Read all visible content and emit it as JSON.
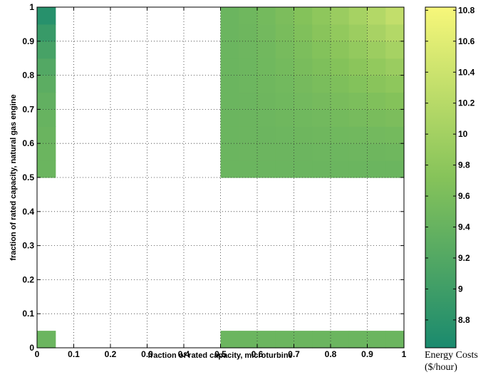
{
  "chart_data": {
    "type": "heatmap",
    "xlabel": "fraction of rated capacity, microturbine",
    "ylabel": "fraction of rated capacity, natural gas engine",
    "xlim": [
      0,
      1
    ],
    "ylim": [
      0,
      1
    ],
    "x_ticks": [
      "0",
      "0.1",
      "0.2",
      "0.3",
      "0.4",
      "0.5",
      "0.6",
      "0.7",
      "0.8",
      "0.9",
      "1"
    ],
    "y_ticks": [
      "0",
      "0.1",
      "0.2",
      "0.3",
      "0.4",
      "0.5",
      "0.6",
      "0.7",
      "0.8",
      "0.9",
      "1"
    ],
    "grid": true,
    "grid_style": "dotted",
    "cell_size": 0.05,
    "colorbar": {
      "label_line1": "Energy Costs",
      "label_line2": "($/hour)",
      "range": [
        8.62,
        10.82
      ],
      "ticks": [
        "8.8",
        "9",
        "9.2",
        "9.4",
        "9.6",
        "9.8",
        "10",
        "10.2",
        "10.4",
        "10.6",
        "10.8"
      ],
      "tick_values": [
        8.8,
        9.0,
        9.2,
        9.4,
        9.6,
        9.8,
        10.0,
        10.2,
        10.4,
        10.6,
        10.8
      ],
      "colormap": [
        "#1a8a6e",
        "#86c35a",
        "#f7f77a"
      ]
    },
    "regions": [
      {
        "x_range": [
          0,
          0.05
        ],
        "y_range": [
          0.5,
          1.0
        ],
        "min_value": 8.75,
        "max_value": 9.45,
        "trend": "low at top"
      },
      {
        "x_range": [
          0.5,
          1.0
        ],
        "y_range": [
          0.5,
          1.0
        ],
        "min_value": 9.45,
        "max_value": 10.3,
        "trend": "high at top-right"
      },
      {
        "x_range": [
          0,
          0.05
        ],
        "y_range": [
          0,
          0.05
        ],
        "value": 9.45
      },
      {
        "x_range": [
          0.5,
          1.0
        ],
        "y_range": [
          0,
          0.05
        ],
        "value": 9.45
      }
    ]
  }
}
